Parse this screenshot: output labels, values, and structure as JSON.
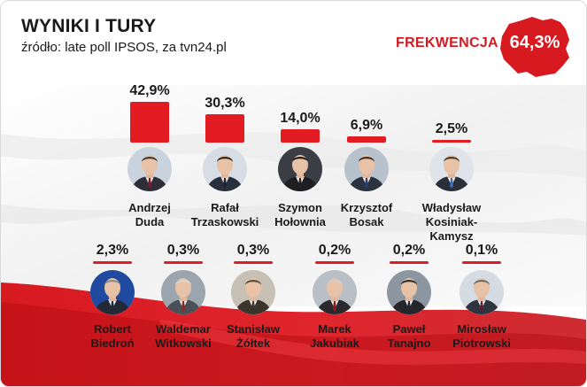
{
  "header": {
    "title": "WYNIKI I TURY",
    "subtitle": "źródło: late poll IPSOS, za tvn24.pl",
    "turnout_label": "FREKWENCJA",
    "turnout_value": "64,3%"
  },
  "colors": {
    "accent": "#d71920",
    "bar": "#e31b23",
    "text": "#1a1a1a"
  },
  "chart_data": {
    "type": "bar",
    "title": "WYNIKI I TURY",
    "subtitle": "źródło: late poll IPSOS, za tvn24.pl",
    "unit": "%",
    "categories": [
      "Andrzej Duda",
      "Rafał Trzaskowski",
      "Szymon Hołownia",
      "Krzysztof Bosak",
      "Władysław Kosiniak-Kamysz",
      "Robert Biedroń",
      "Waldemar Witkowski",
      "Stanisław Żółtek",
      "Marek Jakubiak",
      "Paweł Tanajno",
      "Mirosław Piotrowski"
    ],
    "values": [
      42.9,
      30.3,
      14.0,
      6.9,
      2.5,
      2.3,
      0.3,
      0.3,
      0.2,
      0.2,
      0.1
    ],
    "candidates": [
      {
        "name_line1": "Andrzej",
        "name_line2": "Duda",
        "value_label": "42,9%",
        "value": 42.9,
        "suit": "#2e2e38",
        "tie": "#7a1a2a",
        "hair": "#3a3a3a",
        "bg": "#c9d3dd"
      },
      {
        "name_line1": "Rafał",
        "name_line2": "Trzaskowski",
        "value_label": "30,3%",
        "value": 30.3,
        "suit": "#27313d",
        "tie": "#1d2430",
        "hair": "#2e2620",
        "bg": "#d7dde4"
      },
      {
        "name_line1": "Szymon",
        "name_line2": "Hołownia",
        "value_label": "14,0%",
        "value": 14.0,
        "suit": "#1f1f22",
        "tie": "#1f1f22",
        "hair": "#1c1a19",
        "bg": "#3b3e45"
      },
      {
        "name_line1": "Krzysztof",
        "name_line2": "Bosak",
        "value_label": "6,9%",
        "value": 6.9,
        "suit": "#2b3240",
        "tie": "#2b3b6e",
        "hair": "#3b2d22",
        "bg": "#b8c2cc"
      },
      {
        "name_line1": "Władysław",
        "name_line2": "Kosiniak-Kamysz",
        "value_label": "2,5%",
        "value": 2.5,
        "suit": "#2a2f3a",
        "tie": "#3a6ab0",
        "hair": "#4a3b2e",
        "bg": "#dfe4ea"
      },
      {
        "name_line1": "Robert",
        "name_line2": "Biedroń",
        "value_label": "2,3%",
        "value": 2.3,
        "suit": "#222a38",
        "tie": "#222a38",
        "hair": "#8b8b8b",
        "bg": "#1f4aa0"
      },
      {
        "name_line1": "Waldemar",
        "name_line2": "Witkowski",
        "value_label": "0,3%",
        "value": 0.3,
        "suit": "#4a4f58",
        "tie": "#8a2a2a",
        "hair": "#d6d6d6",
        "bg": "#9aa5ad"
      },
      {
        "name_line1": "Stanisław",
        "name_line2": "Żółtek",
        "value_label": "0,3%",
        "value": 0.3,
        "suit": "#3b342c",
        "tie": "#3b342c",
        "hair": "#5a4a3a",
        "bg": "#c7c0b4"
      },
      {
        "name_line1": "Marek",
        "name_line2": "Jakubiak",
        "value_label": "0,2%",
        "value": 0.2,
        "suit": "#2a2a2e",
        "tie": "#8a1f1f",
        "hair": "#cfcfcf",
        "bg": "#b9bfc6"
      },
      {
        "name_line1": "Paweł",
        "name_line2": "Tanajno",
        "value_label": "0,2%",
        "value": 0.2,
        "suit": "#26262a",
        "tie": "#26262a",
        "hair": "#2b2b2b",
        "bg": "#8c96a0"
      },
      {
        "name_line1": "Mirosław",
        "name_line2": "Piotrowski",
        "value_label": "0,1%",
        "value": 0.1,
        "suit": "#2e3440",
        "tie": "#5a2030",
        "hair": "#6b6b6b",
        "bg": "#d4dbe2"
      }
    ]
  }
}
